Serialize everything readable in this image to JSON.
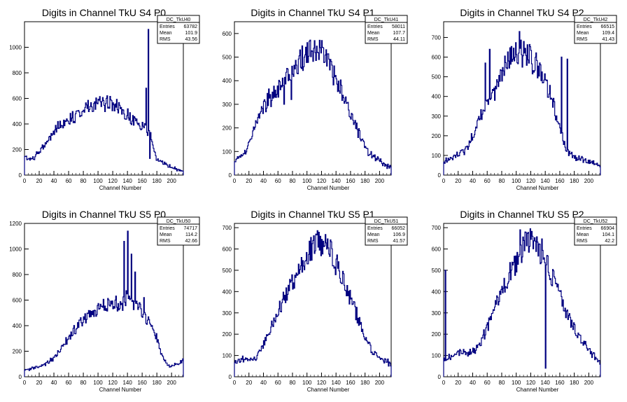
{
  "chart_data": [
    {
      "type": "histogram",
      "title": "Digits in Channel TkU S4 P0",
      "xlabel": "Channel Number",
      "xlim": [
        0,
        216
      ],
      "ylim": [
        0,
        1200
      ],
      "xticks": [
        0,
        20,
        40,
        60,
        80,
        100,
        120,
        140,
        160,
        180,
        200
      ],
      "yticks": [
        200,
        400,
        600,
        800,
        1000
      ],
      "stats": {
        "name": "DC_TkU40",
        "entries": "63782",
        "mean": "101.9",
        "rms": "43.56"
      },
      "series": [
        {
          "x": [
            0,
            10,
            20,
            30,
            40,
            50,
            60,
            70,
            80,
            90,
            100,
            110,
            120,
            130,
            140,
            150,
            160,
            170,
            180,
            190,
            200,
            210,
            216
          ],
          "values": [
            140,
            120,
            180,
            260,
            340,
            400,
            440,
            470,
            520,
            540,
            560,
            560,
            540,
            520,
            480,
            420,
            380,
            330,
            120,
            90,
            60,
            40,
            30
          ]
        }
      ],
      "spikes": [
        {
          "x": 130,
          "y": 520
        },
        {
          "x": 148,
          "y": 390
        },
        {
          "x": 165,
          "y": 680
        },
        {
          "x": 168,
          "y": 1140
        },
        {
          "x": 170,
          "y": 130
        }
      ]
    },
    {
      "type": "histogram",
      "title": "Digits in Channel TkU S4 P1",
      "xlabel": "Channel Number",
      "xlim": [
        0,
        216
      ],
      "ylim": [
        0,
        650
      ],
      "xticks": [
        0,
        20,
        40,
        60,
        80,
        100,
        120,
        140,
        160,
        180,
        200
      ],
      "yticks": [
        100,
        200,
        300,
        400,
        500,
        600
      ],
      "stats": {
        "name": "DC_TkU41",
        "entries": "58011",
        "mean": "107.7",
        "rms": "44.11"
      },
      "series": [
        {
          "x": [
            0,
            10,
            20,
            30,
            40,
            50,
            60,
            70,
            80,
            90,
            100,
            110,
            120,
            130,
            140,
            150,
            160,
            170,
            180,
            190,
            200,
            210,
            216
          ],
          "values": [
            60,
            80,
            130,
            210,
            280,
            340,
            380,
            420,
            440,
            480,
            510,
            540,
            520,
            470,
            400,
            340,
            260,
            190,
            120,
            80,
            60,
            40,
            30
          ]
        }
      ],
      "spikes": [
        {
          "x": 50,
          "y": 290
        },
        {
          "x": 56,
          "y": 360
        },
        {
          "x": 60,
          "y": 330
        },
        {
          "x": 64,
          "y": 380
        },
        {
          "x": 68,
          "y": 300
        },
        {
          "x": 74,
          "y": 400
        },
        {
          "x": 78,
          "y": 320
        }
      ]
    },
    {
      "type": "histogram",
      "title": "Digits in Channel TkU S4 P2",
      "xlabel": "Channel Number",
      "xlim": [
        0,
        216
      ],
      "ylim": [
        0,
        780
      ],
      "xticks": [
        0,
        20,
        40,
        60,
        80,
        100,
        120,
        140,
        160,
        180,
        200
      ],
      "yticks": [
        100,
        200,
        300,
        400,
        500,
        600,
        700
      ],
      "stats": {
        "name": "DC_TkU42",
        "entries": "66515",
        "mean": "109.4",
        "rms": "41.43"
      },
      "series": [
        {
          "x": [
            0,
            10,
            20,
            30,
            40,
            50,
            60,
            70,
            80,
            90,
            100,
            110,
            120,
            130,
            140,
            150,
            160,
            170,
            180,
            190,
            200,
            210,
            216
          ],
          "values": [
            60,
            90,
            100,
            130,
            200,
            290,
            380,
            460,
            520,
            580,
            630,
            620,
            600,
            550,
            470,
            380,
            240,
            120,
            90,
            80,
            70,
            60,
            40
          ]
        }
      ],
      "spikes": [
        {
          "x": 57,
          "y": 570
        },
        {
          "x": 63,
          "y": 640
        },
        {
          "x": 70,
          "y": 380
        },
        {
          "x": 104,
          "y": 730
        },
        {
          "x": 110,
          "y": 680
        },
        {
          "x": 162,
          "y": 600
        },
        {
          "x": 170,
          "y": 590
        }
      ]
    },
    {
      "type": "histogram",
      "title": "Digits in Channel TkU S5 P0",
      "xlabel": "Channel Number",
      "xlim": [
        0,
        216
      ],
      "ylim": [
        0,
        1200
      ],
      "xticks": [
        0,
        20,
        40,
        60,
        80,
        100,
        120,
        140,
        160,
        180,
        200
      ],
      "yticks": [
        200,
        400,
        600,
        800,
        1000,
        1200
      ],
      "stats": {
        "name": "DC_TkU50",
        "entries": "74717",
        "mean": "114.2",
        "rms": "42.66"
      },
      "series": [
        {
          "x": [
            0,
            10,
            20,
            30,
            40,
            50,
            60,
            70,
            80,
            90,
            100,
            110,
            120,
            130,
            140,
            150,
            160,
            170,
            180,
            190,
            200,
            210,
            216
          ],
          "values": [
            50,
            70,
            80,
            100,
            150,
            220,
            300,
            380,
            440,
            490,
            530,
            560,
            580,
            560,
            620,
            560,
            520,
            420,
            300,
            120,
            80,
            100,
            140
          ]
        }
      ],
      "spikes": [
        {
          "x": 123,
          "y": 600
        },
        {
          "x": 135,
          "y": 1060
        },
        {
          "x": 140,
          "y": 1140
        },
        {
          "x": 145,
          "y": 960
        },
        {
          "x": 150,
          "y": 820
        },
        {
          "x": 162,
          "y": 620
        }
      ]
    },
    {
      "type": "histogram",
      "title": "Digits in Channel TkU S5 P1",
      "xlabel": "Channel Number",
      "xlim": [
        0,
        216
      ],
      "ylim": [
        0,
        720
      ],
      "xticks": [
        0,
        20,
        40,
        60,
        80,
        100,
        120,
        140,
        160,
        180,
        200
      ],
      "yticks": [
        100,
        200,
        300,
        400,
        500,
        600,
        700
      ],
      "stats": {
        "name": "DC_TkU51",
        "entries": "66052",
        "mean": "106.9",
        "rms": "41.57"
      },
      "series": [
        {
          "x": [
            0,
            10,
            20,
            30,
            40,
            50,
            60,
            70,
            80,
            90,
            100,
            110,
            120,
            130,
            140,
            150,
            160,
            170,
            180,
            190,
            200,
            210,
            216
          ],
          "values": [
            70,
            80,
            80,
            80,
            150,
            230,
            310,
            380,
            450,
            510,
            570,
            620,
            640,
            600,
            530,
            460,
            370,
            280,
            190,
            120,
            90,
            70,
            60
          ]
        }
      ],
      "spikes": [
        {
          "x": 112,
          "y": 670
        },
        {
          "x": 118,
          "y": 660
        }
      ]
    },
    {
      "type": "histogram",
      "title": "Digits in Channel TkU S5 P2",
      "xlabel": "Channel Number",
      "xlim": [
        0,
        216
      ],
      "ylim": [
        0,
        720
      ],
      "xticks": [
        0,
        20,
        40,
        60,
        80,
        100,
        120,
        140,
        160,
        180,
        200
      ],
      "yticks": [
        100,
        200,
        300,
        400,
        500,
        600,
        700
      ],
      "stats": {
        "name": "DC_TkU52",
        "entries": "66904",
        "mean": "104.1",
        "rms": "42.2"
      },
      "series": [
        {
          "x": [
            0,
            10,
            20,
            30,
            40,
            50,
            60,
            70,
            80,
            90,
            100,
            110,
            120,
            130,
            140,
            150,
            160,
            170,
            180,
            190,
            200,
            210,
            216
          ],
          "values": [
            80,
            100,
            120,
            110,
            120,
            150,
            230,
            320,
            400,
            470,
            540,
            600,
            640,
            620,
            550,
            470,
            380,
            300,
            230,
            180,
            130,
            90,
            60
          ]
        }
      ],
      "spikes": [
        {
          "x": 2,
          "y": 500
        },
        {
          "x": 105,
          "y": 690
        },
        {
          "x": 112,
          "y": 680
        },
        {
          "x": 140,
          "y": 40
        }
      ]
    }
  ]
}
